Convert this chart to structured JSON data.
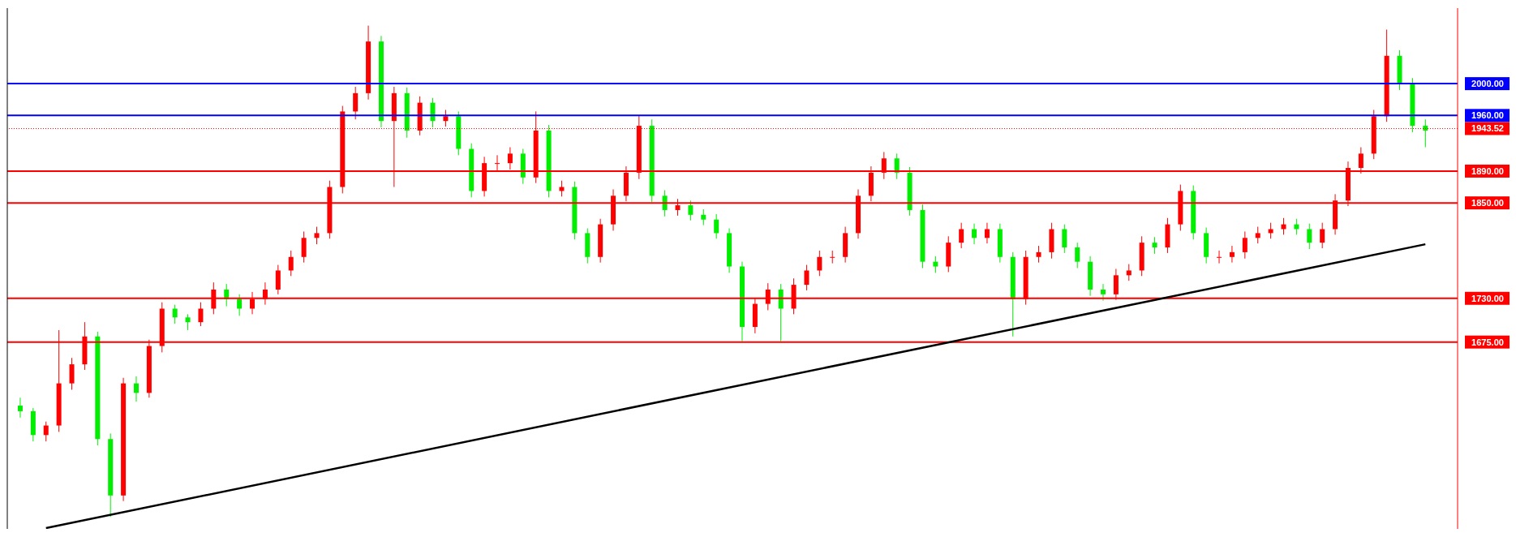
{
  "chart_data": {
    "type": "candlestick",
    "categories": [
      null,
      null,
      null,
      null,
      null,
      null,
      null,
      null,
      null,
      null,
      null,
      null,
      null,
      null,
      null,
      null,
      null,
      null,
      null,
      null,
      null,
      null,
      null,
      null,
      null,
      null,
      null,
      null,
      null,
      null,
      null,
      null,
      null,
      null,
      null,
      null,
      null,
      null,
      null,
      null,
      null,
      null,
      null,
      null,
      null,
      null,
      null,
      null,
      null,
      null,
      null,
      null,
      null,
      null,
      null,
      null,
      null,
      null,
      null,
      null,
      null,
      null,
      null,
      null,
      null,
      null,
      null,
      null,
      null,
      null,
      null,
      null,
      null,
      null,
      null,
      null,
      null,
      null,
      null,
      null,
      null,
      null,
      null,
      null,
      null,
      null,
      null,
      null,
      null,
      null,
      null,
      null,
      null,
      null,
      null,
      null,
      null,
      null,
      null,
      null,
      null,
      null,
      null,
      null,
      null,
      null,
      null,
      null,
      null,
      null
    ],
    "ohlc": [
      [
        1595,
        1605,
        1580,
        1588
      ],
      [
        1588,
        1592,
        1550,
        1558
      ],
      [
        1558,
        1575,
        1550,
        1570
      ],
      [
        1570,
        1690,
        1562,
        1623
      ],
      [
        1623,
        1655,
        1615,
        1647
      ],
      [
        1647,
        1700,
        1640,
        1682
      ],
      [
        1682,
        1688,
        1545,
        1553
      ],
      [
        1553,
        1560,
        1455,
        1482
      ],
      [
        1482,
        1630,
        1475,
        1623
      ],
      [
        1623,
        1632,
        1600,
        1611
      ],
      [
        1611,
        1678,
        1605,
        1670
      ],
      [
        1670,
        1725,
        1662,
        1717
      ],
      [
        1717,
        1722,
        1698,
        1706
      ],
      [
        1706,
        1710,
        1690,
        1700
      ],
      [
        1700,
        1725,
        1695,
        1717
      ],
      [
        1717,
        1750,
        1710,
        1741
      ],
      [
        1741,
        1748,
        1720,
        1729
      ],
      [
        1729,
        1735,
        1708,
        1717
      ],
      [
        1717,
        1738,
        1710,
        1729
      ],
      [
        1729,
        1750,
        1722,
        1741
      ],
      [
        1741,
        1772,
        1735,
        1765
      ],
      [
        1765,
        1790,
        1758,
        1782
      ],
      [
        1782,
        1814,
        1775,
        1806
      ],
      [
        1806,
        1820,
        1798,
        1812
      ],
      [
        1812,
        1878,
        1805,
        1870
      ],
      [
        1870,
        1972,
        1862,
        1965
      ],
      [
        1965,
        1996,
        1955,
        1988
      ],
      [
        1988,
        2073,
        1980,
        2053
      ],
      [
        2053,
        2060,
        1945,
        1953
      ],
      [
        1953,
        1996,
        1870,
        1988
      ],
      [
        1988,
        1995,
        1932,
        1941
      ],
      [
        1941,
        1984,
        1935,
        1976
      ],
      [
        1976,
        1982,
        1945,
        1953
      ],
      [
        1953,
        1967,
        1946,
        1959
      ],
      [
        1959,
        1965,
        1910,
        1918
      ],
      [
        1918,
        1925,
        1857,
        1865
      ],
      [
        1865,
        1908,
        1858,
        1900
      ],
      [
        1900,
        1910,
        1890,
        1900
      ],
      [
        1900,
        1920,
        1892,
        1912
      ],
      [
        1912,
        1918,
        1874,
        1882
      ],
      [
        1882,
        1965,
        1875,
        1941
      ],
      [
        1941,
        1948,
        1857,
        1865
      ],
      [
        1865,
        1878,
        1858,
        1870
      ],
      [
        1870,
        1877,
        1804,
        1812
      ],
      [
        1812,
        1818,
        1774,
        1782
      ],
      [
        1782,
        1830,
        1775,
        1823
      ],
      [
        1823,
        1867,
        1815,
        1859
      ],
      [
        1859,
        1896,
        1852,
        1888
      ],
      [
        1888,
        1960,
        1880,
        1947
      ],
      [
        1947,
        1955,
        1851,
        1859
      ],
      [
        1859,
        1866,
        1833,
        1841
      ],
      [
        1841,
        1855,
        1834,
        1847
      ],
      [
        1847,
        1853,
        1828,
        1835
      ],
      [
        1835,
        1842,
        1822,
        1829
      ],
      [
        1829,
        1836,
        1805,
        1812
      ],
      [
        1812,
        1818,
        1762,
        1770
      ],
      [
        1770,
        1776,
        1676,
        1694
      ],
      [
        1694,
        1730,
        1686,
        1723
      ],
      [
        1723,
        1749,
        1715,
        1741
      ],
      [
        1741,
        1748,
        1676,
        1717
      ],
      [
        1717,
        1755,
        1710,
        1747
      ],
      [
        1747,
        1772,
        1740,
        1765
      ],
      [
        1765,
        1790,
        1758,
        1782
      ],
      [
        1782,
        1790,
        1774,
        1782
      ],
      [
        1782,
        1820,
        1775,
        1812
      ],
      [
        1812,
        1867,
        1805,
        1859
      ],
      [
        1859,
        1896,
        1852,
        1888
      ],
      [
        1888,
        1914,
        1880,
        1906
      ],
      [
        1906,
        1912,
        1880,
        1888
      ],
      [
        1888,
        1895,
        1834,
        1841
      ],
      [
        1841,
        1848,
        1768,
        1776
      ],
      [
        1776,
        1783,
        1762,
        1770
      ],
      [
        1770,
        1808,
        1763,
        1800
      ],
      [
        1800,
        1825,
        1793,
        1817
      ],
      [
        1817,
        1824,
        1798,
        1806
      ],
      [
        1806,
        1825,
        1799,
        1817
      ],
      [
        1817,
        1824,
        1775,
        1782
      ],
      [
        1782,
        1788,
        1682,
        1729
      ],
      [
        1729,
        1790,
        1722,
        1782
      ],
      [
        1782,
        1796,
        1775,
        1788
      ],
      [
        1788,
        1825,
        1780,
        1817
      ],
      [
        1817,
        1823,
        1787,
        1794
      ],
      [
        1794,
        1800,
        1768,
        1776
      ],
      [
        1776,
        1783,
        1733,
        1741
      ],
      [
        1741,
        1748,
        1727,
        1735
      ],
      [
        1735,
        1767,
        1728,
        1759
      ],
      [
        1759,
        1773,
        1752,
        1765
      ],
      [
        1765,
        1808,
        1758,
        1800
      ],
      [
        1800,
        1807,
        1786,
        1794
      ],
      [
        1794,
        1831,
        1787,
        1823
      ],
      [
        1823,
        1873,
        1815,
        1865
      ],
      [
        1865,
        1872,
        1804,
        1812
      ],
      [
        1812,
        1819,
        1774,
        1782
      ],
      [
        1782,
        1790,
        1774,
        1782
      ],
      [
        1782,
        1796,
        1775,
        1788
      ],
      [
        1788,
        1814,
        1780,
        1806
      ],
      [
        1806,
        1820,
        1799,
        1812
      ],
      [
        1812,
        1825,
        1805,
        1817
      ],
      [
        1817,
        1831,
        1810,
        1823
      ],
      [
        1823,
        1830,
        1810,
        1817
      ],
      [
        1817,
        1824,
        1792,
        1800
      ],
      [
        1800,
        1825,
        1793,
        1817
      ],
      [
        1817,
        1861,
        1810,
        1853
      ],
      [
        1853,
        1902,
        1846,
        1894
      ],
      [
        1894,
        1920,
        1887,
        1912
      ],
      [
        1912,
        1967,
        1905,
        1959
      ],
      [
        1959,
        2068,
        1952,
        2035
      ],
      [
        2035,
        2042,
        1992,
        2000
      ],
      [
        2000,
        2007,
        1939,
        1947
      ],
      [
        1947,
        1955,
        1920,
        1941
      ]
    ],
    "colors": [
      "#00ee00",
      "#00ee00",
      "#ff0000",
      "#ff0000",
      "#ff0000",
      "#ff0000",
      "#00ee00",
      "#00ee00",
      "#ff0000",
      "#00ee00",
      "#ff0000",
      "#ff0000",
      "#00ee00",
      "#00ee00",
      "#ff0000",
      "#ff0000",
      "#00ee00",
      "#00ee00",
      "#ff0000",
      "#ff0000",
      "#ff0000",
      "#ff0000",
      "#ff0000",
      "#ff0000",
      "#ff0000",
      "#ff0000",
      "#ff0000",
      "#ff0000",
      "#00ee00",
      "#ff0000",
      "#00ee00",
      "#ff0000",
      "#00ee00",
      "#ff0000",
      "#00ee00",
      "#00ee00",
      "#ff0000",
      "#ff0000",
      "#ff0000",
      "#00ee00",
      "#ff0000",
      "#00ee00",
      "#ff0000",
      "#00ee00",
      "#00ee00",
      "#ff0000",
      "#ff0000",
      "#ff0000",
      "#ff0000",
      "#00ee00",
      "#00ee00",
      "#ff0000",
      "#00ee00",
      "#00ee00",
      "#00ee00",
      "#00ee00",
      "#00ee00",
      "#ff0000",
      "#ff0000",
      "#00ee00",
      "#ff0000",
      "#ff0000",
      "#ff0000",
      "#ff0000",
      "#ff0000",
      "#ff0000",
      "#ff0000",
      "#ff0000",
      "#00ee00",
      "#00ee00",
      "#00ee00",
      "#00ee00",
      "#ff0000",
      "#ff0000",
      "#00ee00",
      "#ff0000",
      "#00ee00",
      "#00ee00",
      "#ff0000",
      "#ff0000",
      "#ff0000",
      "#00ee00",
      "#00ee00",
      "#00ee00",
      "#00ee00",
      "#ff0000",
      "#ff0000",
      "#ff0000",
      "#00ee00",
      "#ff0000",
      "#ff0000",
      "#00ee00",
      "#00ee00",
      "#ff0000",
      "#ff0000",
      "#ff0000",
      "#ff0000",
      "#ff0000",
      "#ff0000",
      "#00ee00",
      "#00ee00",
      "#ff0000",
      "#ff0000",
      "#ff0000",
      "#ff0000",
      "#ff0000",
      "#ff0000",
      "#00ee00",
      "#00ee00",
      "#00ee00"
    ],
    "series": [
      {
        "type": "line",
        "color": "#000000",
        "values": [
          null,
          null,
          1441,
          null,
          null,
          null,
          null,
          null,
          null,
          null,
          null,
          null,
          null,
          null,
          null,
          null,
          null,
          null,
          null,
          null,
          null,
          null,
          null,
          null,
          null,
          null,
          null,
          null,
          null,
          null,
          null,
          null,
          null,
          null,
          null,
          null,
          null,
          null,
          null,
          null,
          null,
          null,
          null,
          null,
          null,
          null,
          null,
          null,
          null,
          null,
          null,
          null,
          null,
          null,
          null,
          null,
          null,
          null,
          null,
          null,
          null,
          null,
          null,
          null,
          null,
          null,
          null,
          null,
          null,
          null,
          null,
          null,
          null,
          null,
          null,
          null,
          null,
          null,
          null,
          null,
          null,
          null,
          null,
          null,
          null,
          null,
          null,
          null,
          null,
          null,
          null,
          null,
          null,
          null,
          null,
          null,
          null,
          null,
          null,
          null,
          null,
          null,
          null,
          null,
          null,
          null,
          null,
          null,
          null,
          1798
        ]
      }
    ],
    "ylim": [
      1440,
      2095
    ],
    "yticks": [
      {
        "value": 1675,
        "label": "1675.00"
      },
      {
        "value": 1730,
        "label": "1730.00"
      },
      {
        "value": 1850,
        "label": "1850.00"
      },
      {
        "value": 1890,
        "label": "1890.00"
      },
      {
        "value": 1943.52,
        "label": "1943.52"
      },
      {
        "value": 1960,
        "label": "1960.00"
      },
      {
        "value": 2000,
        "label": "2000.00"
      }
    ],
    "tick_labels": "y",
    "grid": false,
    "legend": false,
    "ref_lines": [
      {
        "axis": "y",
        "value": 2000,
        "color": "#0000ff"
      },
      {
        "axis": "y",
        "value": 1960,
        "color": "#0000ff"
      },
      {
        "axis": "y",
        "value": 1943.52,
        "color": "#ff0000",
        "line_style": "dotted"
      },
      {
        "axis": "y",
        "value": 1890,
        "color": "#ff0000"
      },
      {
        "axis": "y",
        "value": 1850,
        "color": "#ff0000"
      },
      {
        "axis": "y",
        "value": 1730,
        "color": "#ff0000"
      },
      {
        "axis": "y",
        "value": 1675,
        "color": "#ff0000"
      }
    ]
  }
}
